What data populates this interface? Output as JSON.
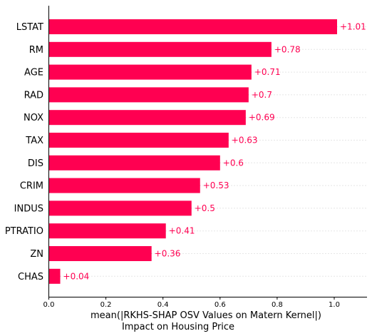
{
  "chart_data": {
    "type": "bar",
    "orientation": "horizontal",
    "categories": [
      "LSTAT",
      "RM",
      "AGE",
      "RAD",
      "NOX",
      "TAX",
      "DIS",
      "CRIM",
      "INDUS",
      "PTRATIO",
      "ZN",
      "CHAS"
    ],
    "values": [
      1.01,
      0.78,
      0.71,
      0.7,
      0.69,
      0.63,
      0.6,
      0.53,
      0.5,
      0.41,
      0.36,
      0.04
    ],
    "value_labels": [
      "+1.01",
      "+0.78",
      "+0.71",
      "+0.7",
      "+0.69",
      "+0.63",
      "+0.6",
      "+0.53",
      "+0.5",
      "+0.41",
      "+0.36",
      "+0.04"
    ],
    "xlabel_lines": [
      "mean(|RKHS-SHAP OSV Values on Matern Kernel|)",
      "Impact on Housing Price"
    ],
    "xticks": [
      0.0,
      0.2,
      0.4,
      0.6,
      0.8,
      1.0
    ],
    "xtick_labels": [
      "0.0",
      "0.2",
      "0.4",
      "0.6",
      "0.8",
      "1.0"
    ],
    "xlim": [
      0,
      1.11
    ],
    "grid": "horizontal dotted",
    "bar_color": "#ff0051",
    "label_color": "#ff0051"
  }
}
